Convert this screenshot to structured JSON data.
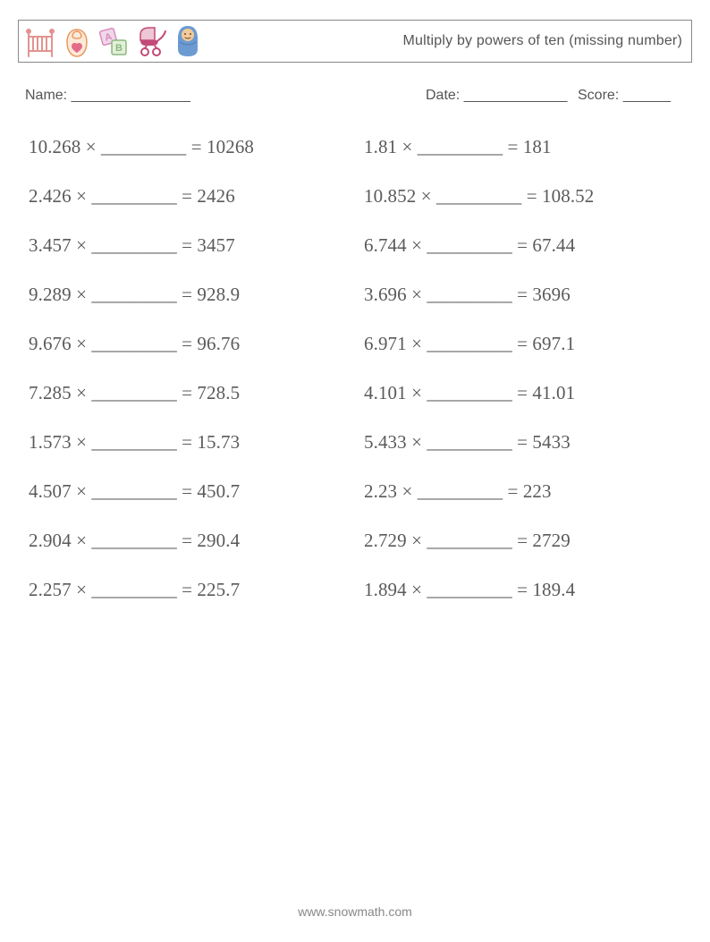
{
  "title": "Multiply by powers of ten (missing number)",
  "meta": {
    "name_label": "Name: _______________",
    "date_label": "Date: _____________",
    "score_label": "Score: ______"
  },
  "blank": "_________",
  "problems_left": [
    {
      "a": "10.268",
      "r": "10268"
    },
    {
      "a": "2.426",
      "r": "2426"
    },
    {
      "a": "3.457",
      "r": "3457"
    },
    {
      "a": "9.289",
      "r": "928.9"
    },
    {
      "a": "9.676",
      "r": "96.76"
    },
    {
      "a": "7.285",
      "r": "728.5"
    },
    {
      "a": "1.573",
      "r": "15.73"
    },
    {
      "a": "4.507",
      "r": "450.7"
    },
    {
      "a": "2.904",
      "r": "290.4"
    },
    {
      "a": "2.257",
      "r": "225.7"
    }
  ],
  "problems_right": [
    {
      "a": "1.81",
      "r": "181"
    },
    {
      "a": "10.852",
      "r": "108.52"
    },
    {
      "a": "6.744",
      "r": "67.44"
    },
    {
      "a": "3.696",
      "r": "3696"
    },
    {
      "a": "6.971",
      "r": "697.1"
    },
    {
      "a": "4.101",
      "r": "41.01"
    },
    {
      "a": "5.433",
      "r": "5433"
    },
    {
      "a": "2.23",
      "r": "223"
    },
    {
      "a": "2.729",
      "r": "2729"
    },
    {
      "a": "1.894",
      "r": "189.4"
    }
  ],
  "footer": "www.snowmath.com",
  "icon_colors": {
    "crib": "#e3938f",
    "bib_outline": "#e89a63",
    "bib_heart": "#e46a8a",
    "block_a": "#d98bbd",
    "block_b": "#8ab87e",
    "stroller": "#c24a78",
    "baby": "#6b9bd1",
    "baby_face": "#f2c99a"
  }
}
